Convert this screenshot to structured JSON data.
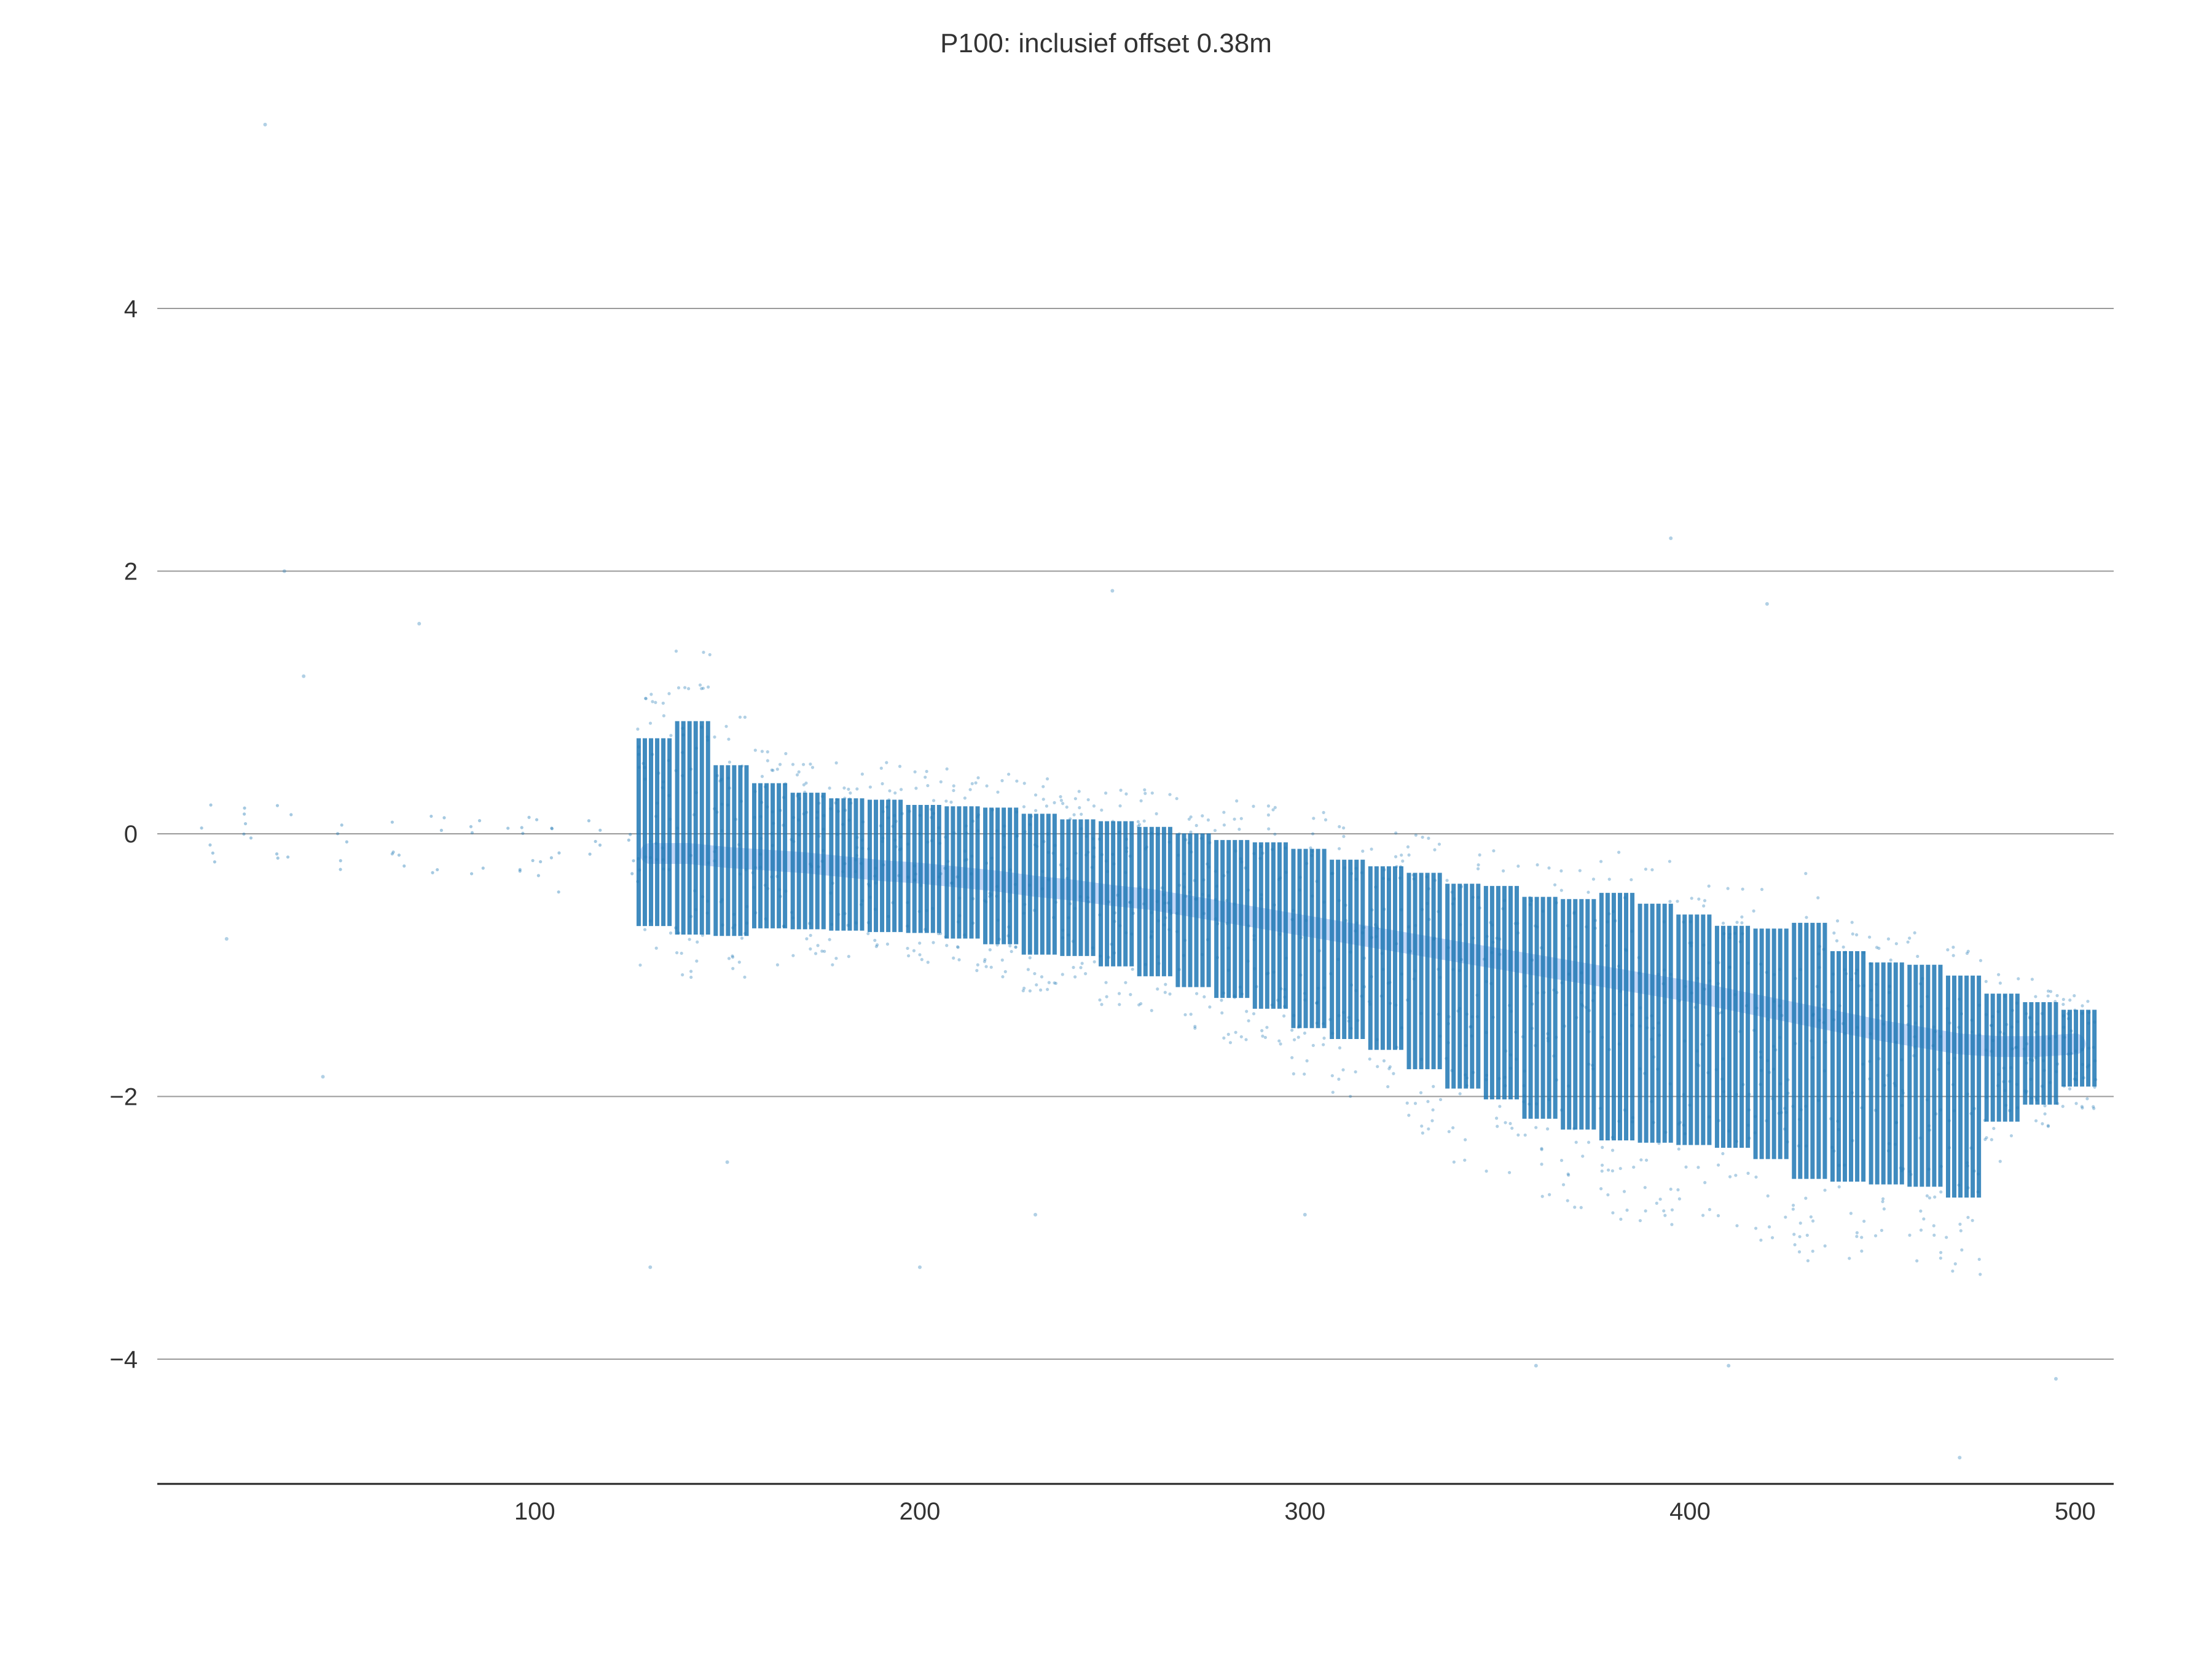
{
  "chart_data": {
    "type": "scatter",
    "title": "P100: inclusief offset 0.38m",
    "xlabel": "",
    "ylabel": "",
    "xlim": [
      2,
      510
    ],
    "ylim": [
      -4.95,
      5.6
    ],
    "x_ticks": [
      100,
      200,
      300,
      400,
      500
    ],
    "x_tick_labels": [
      "100",
      "200",
      "300",
      "400",
      "500"
    ],
    "y_ticks": [
      -4,
      -2,
      0,
      2,
      4
    ],
    "y_tick_labels": [
      "−4",
      "−2",
      "0",
      "2",
      "4"
    ],
    "grid": "horizontal",
    "legend": "none",
    "colors": {
      "points": "#1f77b4",
      "band": "#8fb4ee",
      "grid": "#9a9a9a",
      "axis": "#222222",
      "text": "#333333"
    },
    "series": [
      {
        "x": [
          130,
          140,
          150,
          160,
          170,
          180,
          190,
          200,
          210,
          220,
          230,
          240,
          250,
          260,
          270,
          280,
          290,
          300,
          310,
          320,
          330,
          340,
          350,
          360,
          370,
          380,
          390,
          400,
          410,
          420,
          430,
          440,
          450,
          460,
          470,
          480,
          490,
          500
        ],
        "median": [
          -0.15,
          -0.15,
          -0.18,
          -0.2,
          -0.22,
          -0.25,
          -0.28,
          -0.3,
          -0.33,
          -0.36,
          -0.4,
          -0.43,
          -0.47,
          -0.5,
          -0.55,
          -0.6,
          -0.65,
          -0.7,
          -0.75,
          -0.8,
          -0.85,
          -0.9,
          -0.95,
          -1.0,
          -1.05,
          -1.1,
          -1.15,
          -1.2,
          -1.26,
          -1.32,
          -1.38,
          -1.44,
          -1.5,
          -1.55,
          -1.6,
          -1.62,
          -1.62,
          -1.6
        ],
        "low": [
          -1.0,
          -1.1,
          -1.1,
          -1.0,
          -1.0,
          -1.0,
          -1.0,
          -1.0,
          -1.05,
          -1.1,
          -1.2,
          -1.2,
          -1.3,
          -1.4,
          -1.5,
          -1.6,
          -1.7,
          -1.9,
          -2.0,
          -2.1,
          -2.3,
          -2.5,
          -2.6,
          -2.8,
          -2.9,
          -3.0,
          -3.0,
          -3.0,
          -3.0,
          -3.1,
          -3.3,
          -3.3,
          -3.3,
          -3.3,
          -3.4,
          -2.5,
          -2.3,
          -2.1
        ],
        "high": [
          1.2,
          1.4,
          0.9,
          0.7,
          0.6,
          0.55,
          0.55,
          0.5,
          0.5,
          0.5,
          0.45,
          0.4,
          0.4,
          0.35,
          0.3,
          0.25,
          0.25,
          0.2,
          0.1,
          0.05,
          0.0,
          -0.1,
          -0.1,
          -0.2,
          -0.2,
          -0.1,
          -0.2,
          -0.3,
          -0.4,
          -0.4,
          -0.3,
          -0.6,
          -0.7,
          -0.7,
          -0.8,
          -1.0,
          -1.1,
          -1.2
        ],
        "sparse_x": [
          15,
          25,
          35,
          50,
          65,
          75,
          85,
          95,
          100,
          105,
          115,
          125
        ],
        "sparse_y": [
          0.0,
          0.1,
          0.0,
          -0.05,
          -0.05,
          -0.1,
          -0.1,
          -0.15,
          -0.1,
          -0.2,
          -0.1,
          -0.1
        ],
        "outliers": [
          [
            30,
            5.4
          ],
          [
            35,
            2.0
          ],
          [
            40,
            1.2
          ],
          [
            70,
            1.6
          ],
          [
            150,
            -2.5
          ],
          [
            200,
            -3.3
          ],
          [
            230,
            -2.9
          ],
          [
            250,
            1.85
          ],
          [
            395,
            2.25
          ],
          [
            420,
            1.75
          ],
          [
            360,
            -4.05
          ],
          [
            470,
            -4.75
          ],
          [
            495,
            -4.15
          ],
          [
            410,
            -4.05
          ],
          [
            20,
            -0.8
          ],
          [
            45,
            -1.85
          ],
          [
            130,
            -3.3
          ],
          [
            300,
            -2.9
          ]
        ]
      }
    ]
  }
}
